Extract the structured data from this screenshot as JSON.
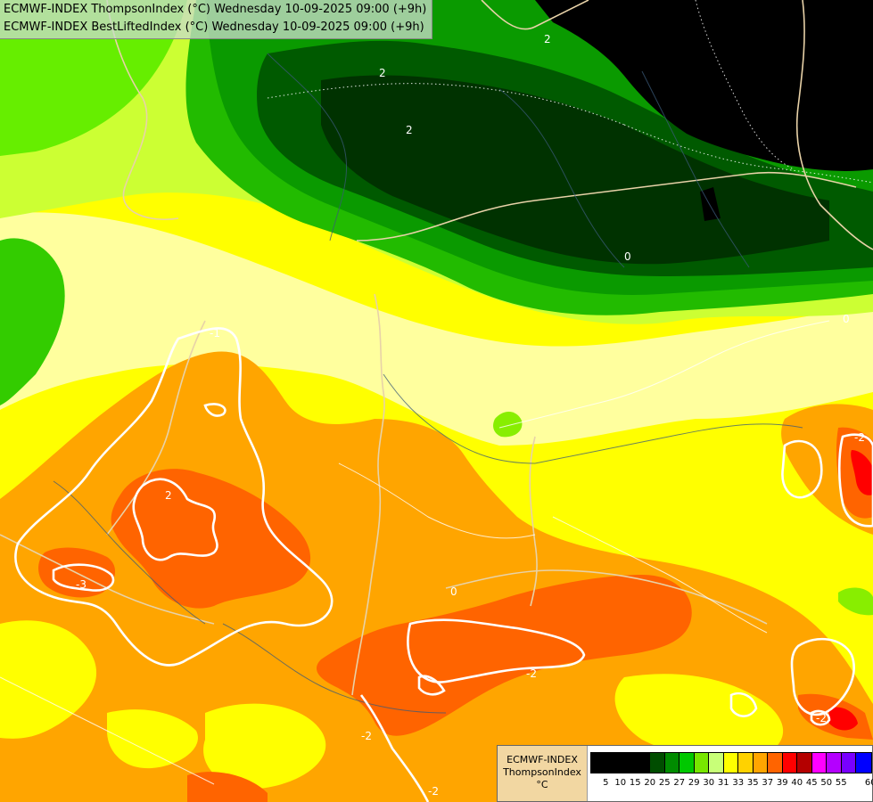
{
  "header": {
    "title_line1": "ECMWF-INDEX ThompsonIndex (°C) Wednesday 10-09-2025 09:00 (+9h)",
    "title_line2": "ECMWF-INDEX BestLiftedIndex (°C) Wednesday 10-09-2025 09:00 (+9h)"
  },
  "legend": {
    "model": "ECMWF-INDEX",
    "parameter": "ThompsonIndex",
    "unit": "°C",
    "swatches": [
      {
        "color": "#000000",
        "label": "5"
      },
      {
        "color": "#000000",
        "label": "10"
      },
      {
        "color": "#000000",
        "label": "15"
      },
      {
        "color": "#000000",
        "label": "20"
      },
      {
        "color": "#004d00",
        "label": "25"
      },
      {
        "color": "#008c00",
        "label": "27"
      },
      {
        "color": "#00c800",
        "label": "29"
      },
      {
        "color": "#78e600",
        "label": "30"
      },
      {
        "color": "#c8ff78",
        "label": "31"
      },
      {
        "color": "#ffff00",
        "label": "33"
      },
      {
        "color": "#ffd200",
        "label": "35"
      },
      {
        "color": "#ffa500",
        "label": "37"
      },
      {
        "color": "#ff6400",
        "label": "39"
      },
      {
        "color": "#ff0000",
        "label": "40"
      },
      {
        "color": "#b40000",
        "label": "45"
      },
      {
        "color": "#ff00ff",
        "label": "50"
      },
      {
        "color": "#b400ff",
        "label": "55"
      },
      {
        "color": "#7800ff",
        "label": ""
      },
      {
        "color": "#0000ff",
        "label": "60"
      }
    ]
  },
  "map": {
    "contour_labels": [
      "2",
      "2",
      "2",
      "2",
      "-1",
      "-2",
      "-3",
      "-2",
      "-2",
      "-2",
      "-2",
      "0",
      "0",
      "0"
    ]
  }
}
